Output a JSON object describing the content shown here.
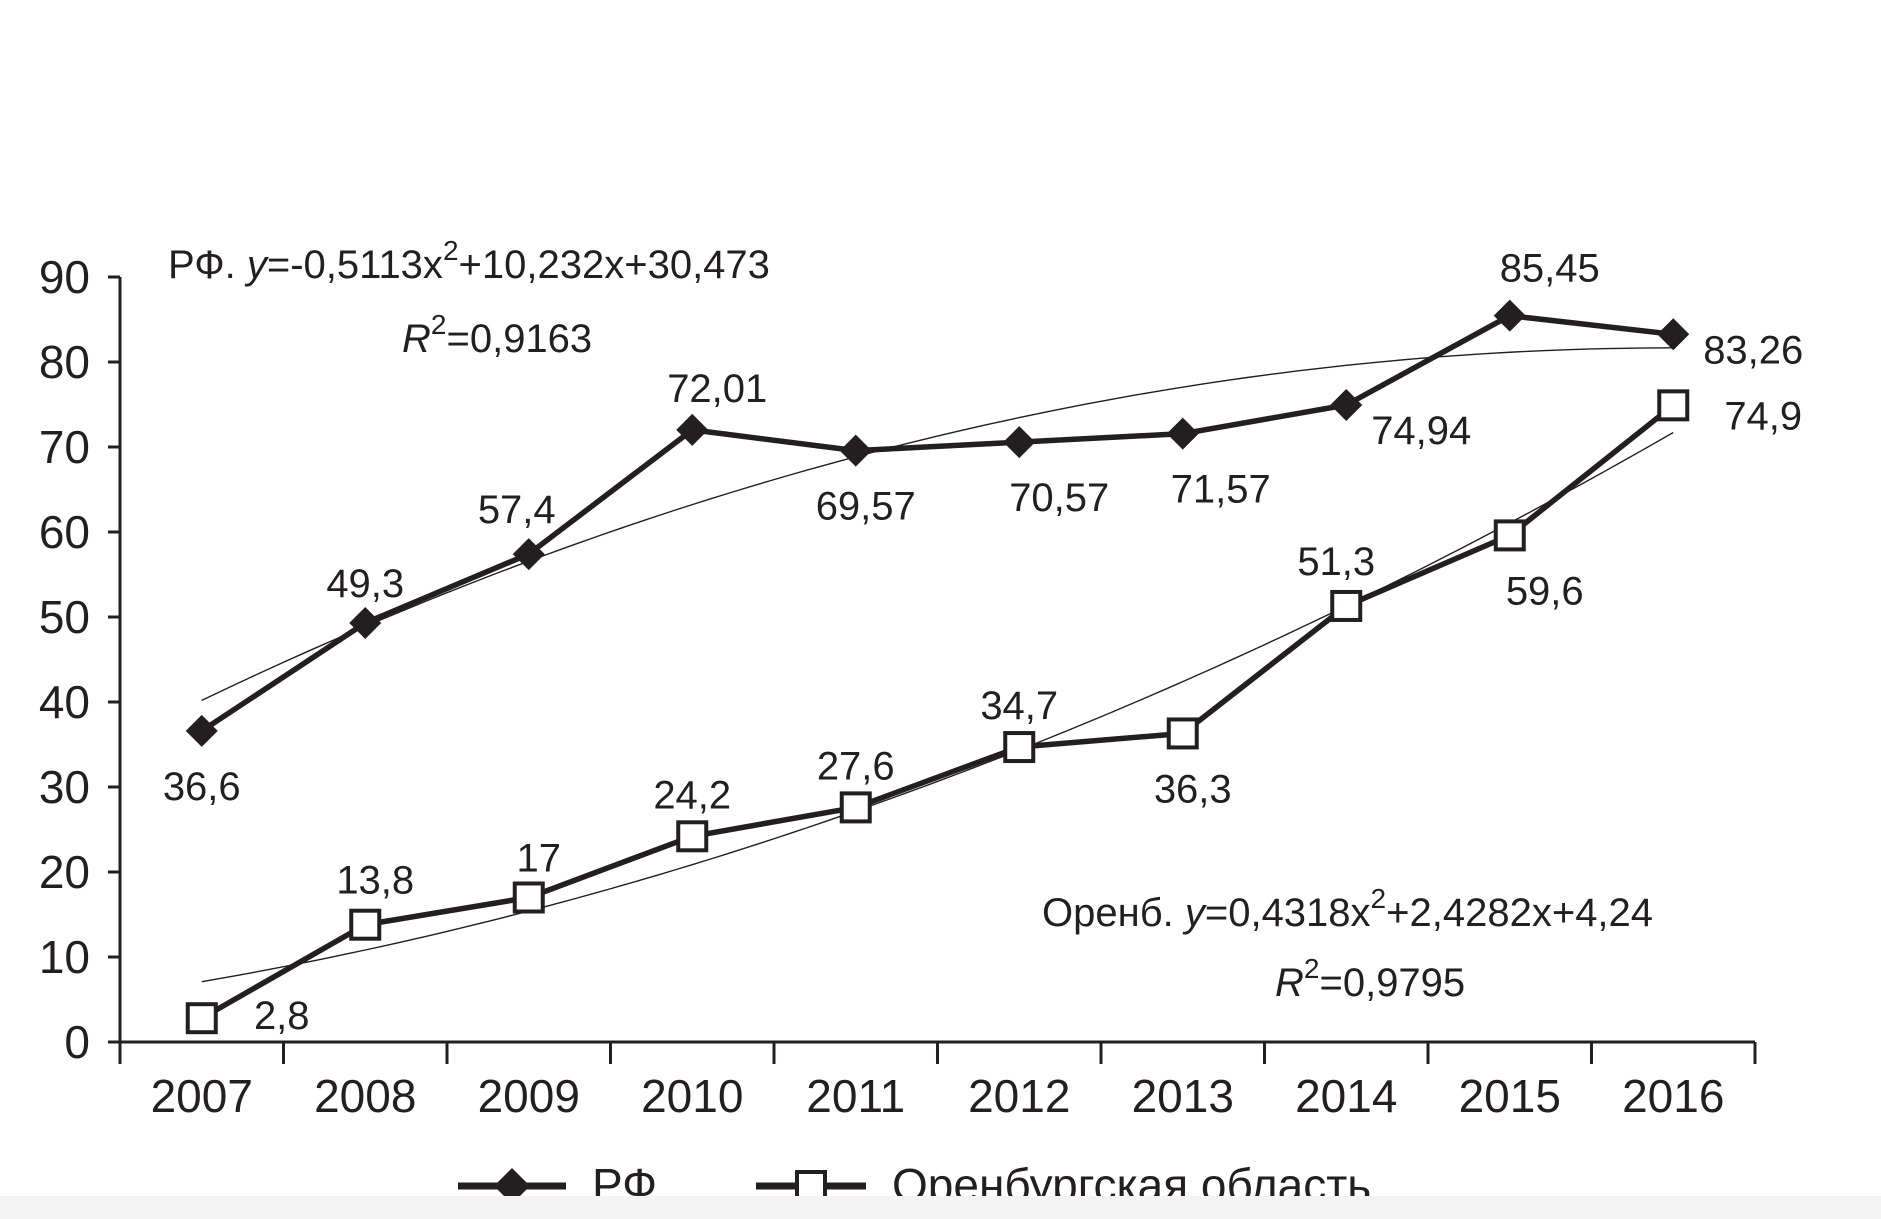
{
  "chart_data": {
    "type": "line",
    "title": "",
    "xlabel": "",
    "ylabel": "",
    "categories": [
      "2007",
      "2008",
      "2009",
      "2010",
      "2011",
      "2012",
      "2013",
      "2014",
      "2015",
      "2016"
    ],
    "ylim": [
      0,
      90
    ],
    "yticks": [
      0,
      10,
      20,
      30,
      40,
      50,
      60,
      70,
      80,
      90
    ],
    "grid": false,
    "legend_position": "bottom",
    "series": [
      {
        "name": "РФ",
        "marker": "filled-diamond",
        "values": [
          36.6,
          49.3,
          57.4,
          72.01,
          69.57,
          70.57,
          71.57,
          74.94,
          85.45,
          83.26
        ],
        "labels": [
          "36,6",
          "49,3",
          "57,4",
          "72,01",
          "69,57",
          "70,57",
          "71,57",
          "74,94",
          "85,45",
          "83,26"
        ],
        "trend": {
          "a": -0.5113,
          "b": 10.232,
          "c": 30.473,
          "r2": 0.9163
        }
      },
      {
        "name": "Оренбургская область",
        "marker": "open-square",
        "values": [
          2.8,
          13.8,
          17,
          24.2,
          27.6,
          34.7,
          36.3,
          51.3,
          59.6,
          74.9
        ],
        "labels": [
          "2,8",
          "13,8",
          "17",
          "24,2",
          "27,6",
          "34,7",
          "36,3",
          "51,3",
          "59,6",
          "74,9"
        ],
        "trend": {
          "a": 0.4318,
          "b": 2.4282,
          "c": 4.24,
          "r2": 0.9795
        }
      }
    ],
    "annotations": {
      "rf_eq_prefix": "РФ. ",
      "rf_eq_y": "y",
      "rf_eq_mid": "=-0,5113x",
      "rf_eq_sup": "2",
      "rf_eq_tail": "+10,232x+30,473",
      "rf_r2_R": "R",
      "rf_r2_sup": "2",
      "rf_r2_val": "=0,9163",
      "or_eq_prefix": "Оренб. ",
      "or_eq_y": "y",
      "or_eq_mid": "=0,4318x",
      "or_eq_sup": "2",
      "or_eq_tail": "+2,4282x+4,24",
      "or_r2_R": "R",
      "or_r2_sup": "2",
      "or_r2_val": "=0,9795"
    }
  },
  "legend": {
    "items": [
      "РФ",
      "Оренбургская область"
    ]
  },
  "colors": {
    "ink": "#231f20",
    "background": "#ffffff"
  }
}
